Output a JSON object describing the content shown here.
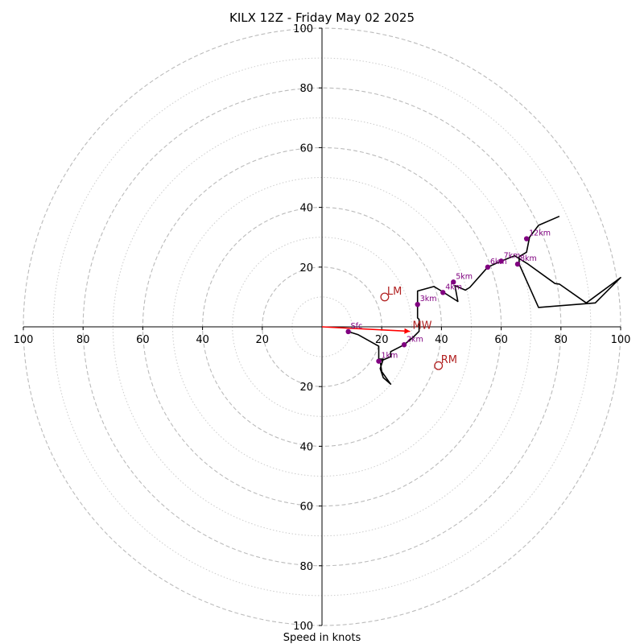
{
  "chart_data": {
    "type": "scatter",
    "title": "KILX 12Z - Friday May 02 2025",
    "xlabel": "Speed in knots",
    "ylabel": "",
    "xlim": [
      -100,
      100
    ],
    "ylim": [
      -100,
      100
    ],
    "rings": {
      "major": [
        20,
        40,
        60,
        80,
        100
      ],
      "minor": [
        10,
        30,
        50,
        70,
        90
      ]
    },
    "x_ticks": [
      {
        "value": -100,
        "label": "100"
      },
      {
        "value": -80,
        "label": "80"
      },
      {
        "value": -60,
        "label": "60"
      },
      {
        "value": -40,
        "label": "40"
      },
      {
        "value": -20,
        "label": "20"
      },
      {
        "value": 20,
        "label": "20"
      },
      {
        "value": 40,
        "label": "40"
      },
      {
        "value": 60,
        "label": "60"
      },
      {
        "value": 80,
        "label": "80"
      },
      {
        "value": 100,
        "label": "100"
      }
    ],
    "y_ticks": [
      {
        "value": 100,
        "label": "100"
      },
      {
        "value": 80,
        "label": "80"
      },
      {
        "value": 60,
        "label": "60"
      },
      {
        "value": 40,
        "label": "40"
      },
      {
        "value": 20,
        "label": "20"
      },
      {
        "value": -20,
        "label": "20"
      },
      {
        "value": -40,
        "label": "40"
      },
      {
        "value": -60,
        "label": "60"
      },
      {
        "value": -80,
        "label": "80"
      },
      {
        "value": -100,
        "label": "100"
      }
    ],
    "hodograph": [
      [
        8.8,
        -1.6
      ],
      [
        12,
        -2.6
      ],
      [
        19,
        -6.5
      ],
      [
        19,
        -10.8
      ],
      [
        20.5,
        -10.8
      ],
      [
        19.5,
        -14
      ],
      [
        20.5,
        -17
      ],
      [
        23,
        -19.2
      ],
      [
        20,
        -15
      ],
      [
        19.5,
        -11.5
      ],
      [
        23,
        -10
      ],
      [
        23,
        -8.3
      ],
      [
        27.5,
        -6
      ],
      [
        30.5,
        -3.5
      ],
      [
        32.5,
        -1.5
      ],
      [
        32.5,
        2.5
      ],
      [
        32,
        3
      ],
      [
        32,
        7.5
      ],
      [
        32,
        12
      ],
      [
        37.5,
        13.5
      ],
      [
        40,
        12
      ],
      [
        45.5,
        8.5
      ],
      [
        44.5,
        13.8
      ],
      [
        48,
        12.3
      ],
      [
        49.5,
        13.2
      ],
      [
        55.5,
        20
      ],
      [
        60,
        22
      ],
      [
        64.5,
        23.8
      ],
      [
        69,
        21
      ],
      [
        78,
        14.5
      ],
      [
        79.5,
        14.3
      ],
      [
        88.5,
        8
      ],
      [
        100,
        16.5
      ],
      [
        91.5,
        8
      ],
      [
        72.5,
        6.5
      ],
      [
        66,
        21
      ],
      [
        66,
        23.5
      ],
      [
        68.5,
        25
      ],
      [
        69.5,
        30
      ],
      [
        72.5,
        34
      ],
      [
        79.5,
        37
      ]
    ],
    "levels": [
      {
        "label": "Sfc",
        "x": 8.8,
        "y": -1.6
      },
      {
        "label": "1km",
        "x": 19,
        "y": -11.5
      },
      {
        "label": "2km",
        "x": 27.5,
        "y": -6
      },
      {
        "label": "3km",
        "x": 32,
        "y": 7.5
      },
      {
        "label": "4km",
        "x": 40.5,
        "y": 11.5
      },
      {
        "label": "5km",
        "x": 44,
        "y": 15
      },
      {
        "label": "6km",
        "x": 55.5,
        "y": 20
      },
      {
        "label": "7km",
        "x": 60,
        "y": 22
      },
      {
        "label": "8km",
        "x": 65.5,
        "y": 21
      },
      {
        "label": "12km",
        "x": 68.5,
        "y": 29.5
      }
    ],
    "storm_motion": [
      {
        "label": "LM",
        "x": 21,
        "y": 10
      },
      {
        "label": "RM",
        "x": 39,
        "y": -13
      },
      {
        "label": "MW",
        "x": 29.5,
        "y": -1.5
      }
    ],
    "mean_wind_vector": {
      "from": [
        0,
        0
      ],
      "to": [
        29.5,
        -1.5
      ]
    },
    "colors": {
      "hodograph": "#000000",
      "levels": "#800080",
      "storm_motion": "#b22222",
      "vector": "#ff0000",
      "ring": "#bbbbbb"
    }
  }
}
